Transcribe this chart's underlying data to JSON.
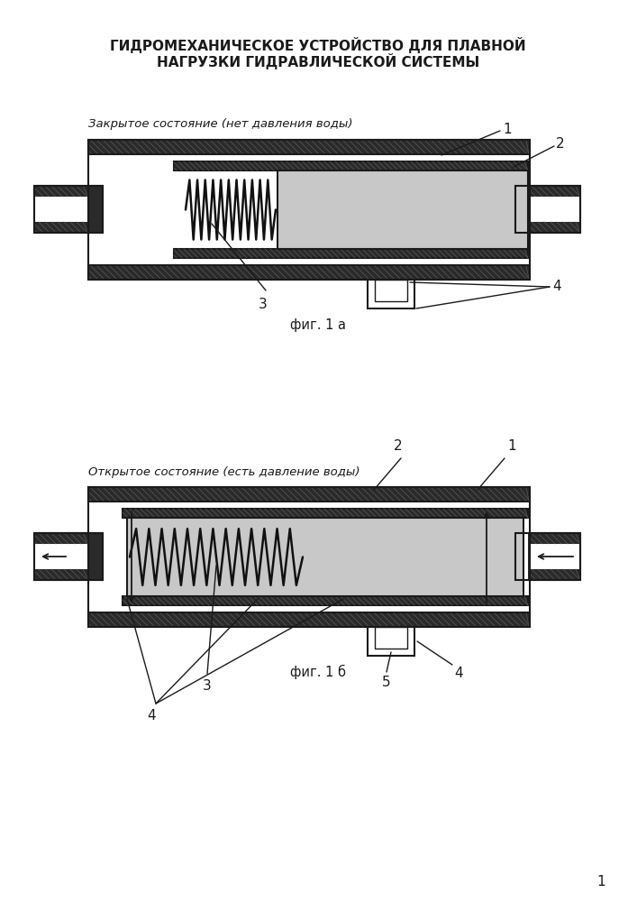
{
  "title_line1": "ГИДРОМЕХАНИЧЕСКОЕ УСТРОЙСТВО ДЛЯ ПЛАВНОЙ",
  "title_line2": "НАГРУЗКИ ГИДРАВЛИЧЕСКОЙ СИСТЕМЫ",
  "fig1a_label": "Закрытое состояние (нет давления воды)",
  "fig1b_label": "Открытое состояние (есть давление воды)",
  "caption_a": "фиг. 1 а",
  "caption_b": "фиг. 1 б",
  "page_number": "1",
  "bg_color": "#ffffff",
  "line_color": "#1a1a1a",
  "wall_fill": "#2a2a2a",
  "wall_fill_light": "#404040",
  "spring_color": "#111111",
  "piston_fill": "#c8c8c8",
  "hatch_color": "#666666",
  "white": "#ffffff"
}
